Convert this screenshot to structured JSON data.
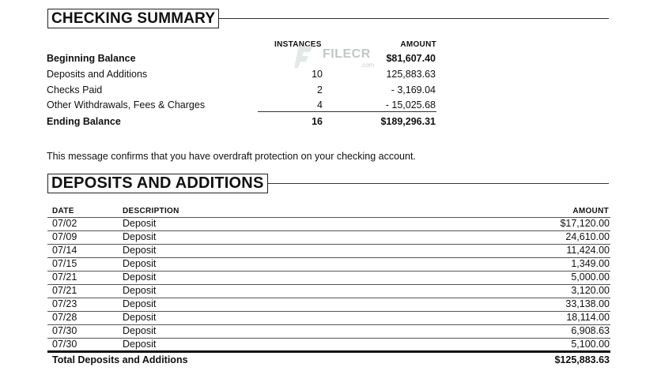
{
  "summary": {
    "title": "CHECKING SUMMARY",
    "col_instances": "INSTANCES",
    "col_amount": "AMOUNT",
    "rows": [
      {
        "label": "Beginning Balance",
        "instances": "",
        "amount": "$81,607.40",
        "bold": true
      },
      {
        "label": "Deposits and Additions",
        "instances": "10",
        "amount": "125,883.63",
        "bold": false
      },
      {
        "label": "Checks Paid",
        "instances": "2",
        "amount": "- 3,169.04",
        "bold": false
      },
      {
        "label": "Other Withdrawals, Fees & Charges",
        "instances": "4",
        "amount": "- 15,025.68",
        "bold": false
      },
      {
        "label": "Ending Balance",
        "instances": "16",
        "amount": "$189,296.31",
        "bold": true
      }
    ]
  },
  "message": "This message confirms that you have overdraft protection on your checking account.",
  "deposits": {
    "title": "DEPOSITS AND ADDITIONS",
    "col_date": "DATE",
    "col_description": "DESCRIPTION",
    "col_amount": "AMOUNT",
    "rows": [
      {
        "date": "07/02",
        "description": "Deposit",
        "amount": "$17,120.00"
      },
      {
        "date": "07/09",
        "description": "Deposit",
        "amount": "24,610.00"
      },
      {
        "date": "07/14",
        "description": "Deposit",
        "amount": "11,424.00"
      },
      {
        "date": "07/15",
        "description": "Deposit",
        "amount": "1,349.00"
      },
      {
        "date": "07/21",
        "description": "Deposit",
        "amount": "5,000.00"
      },
      {
        "date": "07/21",
        "description": "Deposit",
        "amount": "3,120.00"
      },
      {
        "date": "07/23",
        "description": "Deposit",
        "amount": "33,138.00"
      },
      {
        "date": "07/28",
        "description": "Deposit",
        "amount": "18,114.00"
      },
      {
        "date": "07/30",
        "description": "Deposit",
        "amount": "6,908.63"
      },
      {
        "date": "07/30",
        "description": "Deposit",
        "amount": "5,100.00"
      }
    ],
    "total_label": "Total Deposits and Additions",
    "total_amount": "$125,883.63"
  },
  "watermark": {
    "text": "FILECR",
    "sub": ".com",
    "icon": "filecr-logo-icon"
  }
}
